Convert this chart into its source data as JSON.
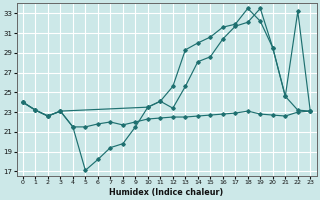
{
  "xlabel": "Humidex (Indice chaleur)",
  "bg_color": "#cce8e8",
  "grid_color": "#ffffff",
  "line_color": "#1e7070",
  "xlim": [
    -0.5,
    23.5
  ],
  "ylim": [
    16.5,
    34
  ],
  "yticks": [
    17,
    19,
    21,
    23,
    25,
    27,
    29,
    31,
    33
  ],
  "xticks": [
    0,
    1,
    2,
    3,
    4,
    5,
    6,
    7,
    8,
    9,
    10,
    11,
    12,
    13,
    14,
    15,
    16,
    17,
    18,
    19,
    20,
    21,
    22,
    23
  ],
  "series1_x": [
    0,
    1,
    2,
    3,
    4,
    5,
    6,
    7,
    8,
    9,
    10,
    11,
    12,
    13,
    14,
    15,
    16,
    17,
    18,
    19,
    20,
    21,
    22,
    23
  ],
  "series1_y": [
    24.0,
    23.2,
    22.6,
    23.1,
    21.5,
    17.1,
    18.2,
    19.4,
    19.8,
    21.5,
    23.5,
    24.1,
    23.4,
    25.6,
    28.1,
    28.6,
    30.4,
    31.7,
    32.1,
    33.5,
    29.5,
    24.6,
    23.2,
    23.1
  ],
  "series2_x": [
    0,
    1,
    2,
    3,
    4,
    5,
    6,
    7,
    8,
    9,
    10,
    11,
    12,
    13,
    14,
    15,
    16,
    17,
    18,
    19,
    20,
    21,
    22,
    23
  ],
  "series2_y": [
    24.0,
    23.2,
    22.6,
    23.1,
    21.5,
    21.5,
    21.8,
    22.0,
    21.7,
    22.0,
    22.3,
    22.4,
    22.5,
    22.5,
    22.6,
    22.7,
    22.8,
    22.9,
    23.1,
    22.8,
    22.7,
    22.6,
    23.0,
    23.1
  ],
  "series3_x": [
    0,
    1,
    2,
    3,
    10,
    11,
    12,
    13,
    14,
    15,
    16,
    17,
    18,
    19,
    20,
    21,
    22,
    23
  ],
  "series3_y": [
    24.0,
    23.2,
    22.6,
    23.1,
    23.5,
    24.1,
    25.6,
    29.3,
    30.0,
    30.6,
    31.6,
    31.9,
    33.5,
    32.2,
    29.5,
    24.6,
    33.2,
    23.1
  ]
}
